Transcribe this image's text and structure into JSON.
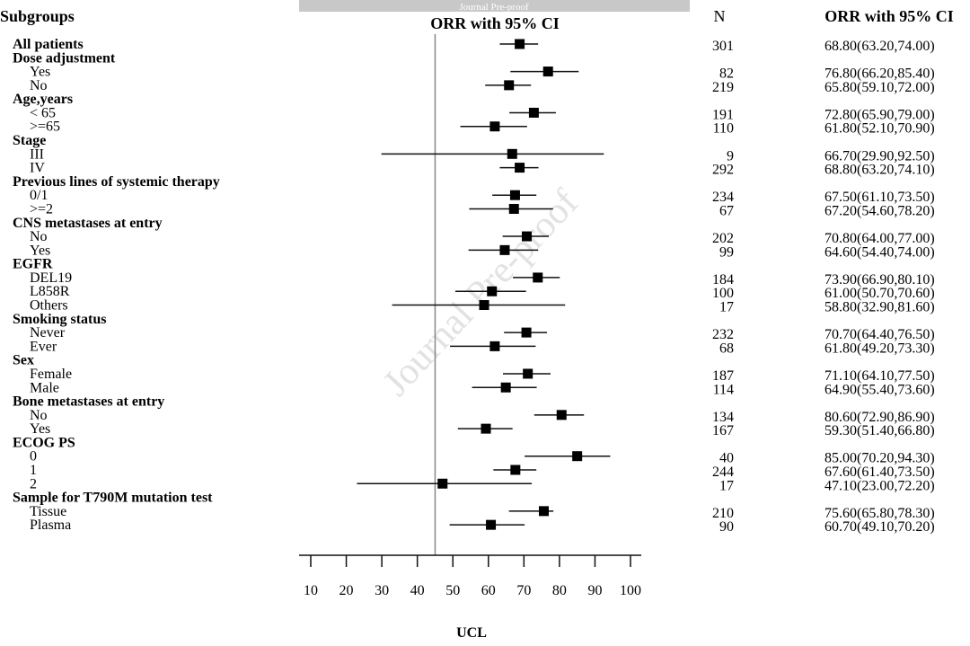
{
  "banner": {
    "text": "Journal Pre-proof",
    "color": "#c8c8c8"
  },
  "watermark": "Journal Pre-proof",
  "chart_data": {
    "type": "forest",
    "headers": {
      "subgroups": "Subgroups",
      "plot": "ORR with 95% CI",
      "n": "N",
      "ci": "ORR with 95% CI"
    },
    "xlabel": "UCL",
    "xlim": [
      7,
      103
    ],
    "xticks": [
      10,
      20,
      30,
      40,
      50,
      60,
      70,
      80,
      90,
      100
    ],
    "reference_line": 45,
    "rows": [
      {
        "label": "All patients",
        "header": true,
        "n": "301",
        "est": 68.8,
        "lo": 63.2,
        "hi": 74.0,
        "ci": "68.80(63.20,74.00)"
      },
      {
        "label": "Dose adjustment",
        "header": true
      },
      {
        "label": "Yes",
        "n": "82",
        "est": 76.8,
        "lo": 66.2,
        "hi": 85.4,
        "ci": "76.80(66.20,85.40)"
      },
      {
        "label": "No",
        "n": "219",
        "est": 65.8,
        "lo": 59.1,
        "hi": 72.0,
        "ci": "65.80(59.10,72.00)"
      },
      {
        "label": "Age,years",
        "header": true
      },
      {
        "label": "< 65",
        "n": "191",
        "est": 72.8,
        "lo": 65.9,
        "hi": 79.0,
        "ci": "72.80(65.90,79.00)"
      },
      {
        "label": ">=65",
        "n": "110",
        "est": 61.8,
        "lo": 52.1,
        "hi": 70.9,
        "ci": "61.80(52.10,70.90)"
      },
      {
        "label": "Stage",
        "header": true
      },
      {
        "label": "III",
        "n": "9",
        "est": 66.7,
        "lo": 29.9,
        "hi": 92.5,
        "ci": "66.70(29.90,92.50)"
      },
      {
        "label": "IV",
        "n": "292",
        "est": 68.8,
        "lo": 63.2,
        "hi": 74.1,
        "ci": "68.80(63.20,74.10)"
      },
      {
        "label": "Previous lines of systemic therapy",
        "header": true
      },
      {
        "label": "0/1",
        "n": "234",
        "est": 67.5,
        "lo": 61.1,
        "hi": 73.5,
        "ci": "67.50(61.10,73.50)"
      },
      {
        "label": ">=2",
        "n": "67",
        "est": 67.2,
        "lo": 54.6,
        "hi": 78.2,
        "ci": "67.20(54.60,78.20)"
      },
      {
        "label": "CNS metastases at entry",
        "header": true
      },
      {
        "label": "No",
        "n": "202",
        "est": 70.8,
        "lo": 64.0,
        "hi": 77.0,
        "ci": "70.80(64.00,77.00)"
      },
      {
        "label": "Yes",
        "n": "99",
        "est": 64.6,
        "lo": 54.4,
        "hi": 74.0,
        "ci": "64.60(54.40,74.00)"
      },
      {
        "label": "EGFR",
        "header": true
      },
      {
        "label": "DEL19",
        "n": "184",
        "est": 73.9,
        "lo": 66.9,
        "hi": 80.1,
        "ci": "73.90(66.90,80.10)"
      },
      {
        "label": "L858R",
        "n": "100",
        "est": 61.0,
        "lo": 50.7,
        "hi": 70.6,
        "ci": "61.00(50.70,70.60)"
      },
      {
        "label": "Others",
        "n": "17",
        "est": 58.8,
        "lo": 32.9,
        "hi": 81.6,
        "ci": "58.80(32.90,81.60)"
      },
      {
        "label": "Smoking status",
        "header": true
      },
      {
        "label": "Never",
        "n": "232",
        "est": 70.7,
        "lo": 64.4,
        "hi": 76.5,
        "ci": "70.70(64.40,76.50)"
      },
      {
        "label": "Ever",
        "n": "68",
        "est": 61.8,
        "lo": 49.2,
        "hi": 73.3,
        "ci": "61.80(49.20,73.30)"
      },
      {
        "label": "Sex",
        "header": true
      },
      {
        "label": "Female",
        "n": "187",
        "est": 71.1,
        "lo": 64.1,
        "hi": 77.5,
        "ci": "71.10(64.10,77.50)"
      },
      {
        "label": "Male",
        "n": "114",
        "est": 64.9,
        "lo": 55.4,
        "hi": 73.6,
        "ci": "64.90(55.40,73.60)"
      },
      {
        "label": "Bone metastases at entry",
        "header": true
      },
      {
        "label": "No",
        "n": "134",
        "est": 80.6,
        "lo": 72.9,
        "hi": 86.9,
        "ci": "80.60(72.90,86.90)"
      },
      {
        "label": "Yes",
        "n": "167",
        "est": 59.3,
        "lo": 51.4,
        "hi": 66.8,
        "ci": "59.30(51.40,66.80)"
      },
      {
        "label": "ECOG PS",
        "header": true
      },
      {
        "label": "0",
        "n": "40",
        "est": 85.0,
        "lo": 70.2,
        "hi": 94.3,
        "ci": "85.00(70.20,94.30)"
      },
      {
        "label": "1",
        "n": "244",
        "est": 67.6,
        "lo": 61.4,
        "hi": 73.5,
        "ci": "67.60(61.40,73.50)"
      },
      {
        "label": "2",
        "n": "17",
        "est": 47.1,
        "lo": 23.0,
        "hi": 72.2,
        "ci": "47.10(23.00,72.20)"
      },
      {
        "label": "Sample for T790M mutation test",
        "header": true
      },
      {
        "label": "Tissue",
        "n": "210",
        "est": 75.6,
        "lo": 65.8,
        "hi": 78.3,
        "ci": "75.60(65.80,78.30)"
      },
      {
        "label": "Plasma",
        "n": "90",
        "est": 60.7,
        "lo": 49.1,
        "hi": 70.2,
        "ci": "60.70(49.10,70.20)"
      }
    ]
  }
}
